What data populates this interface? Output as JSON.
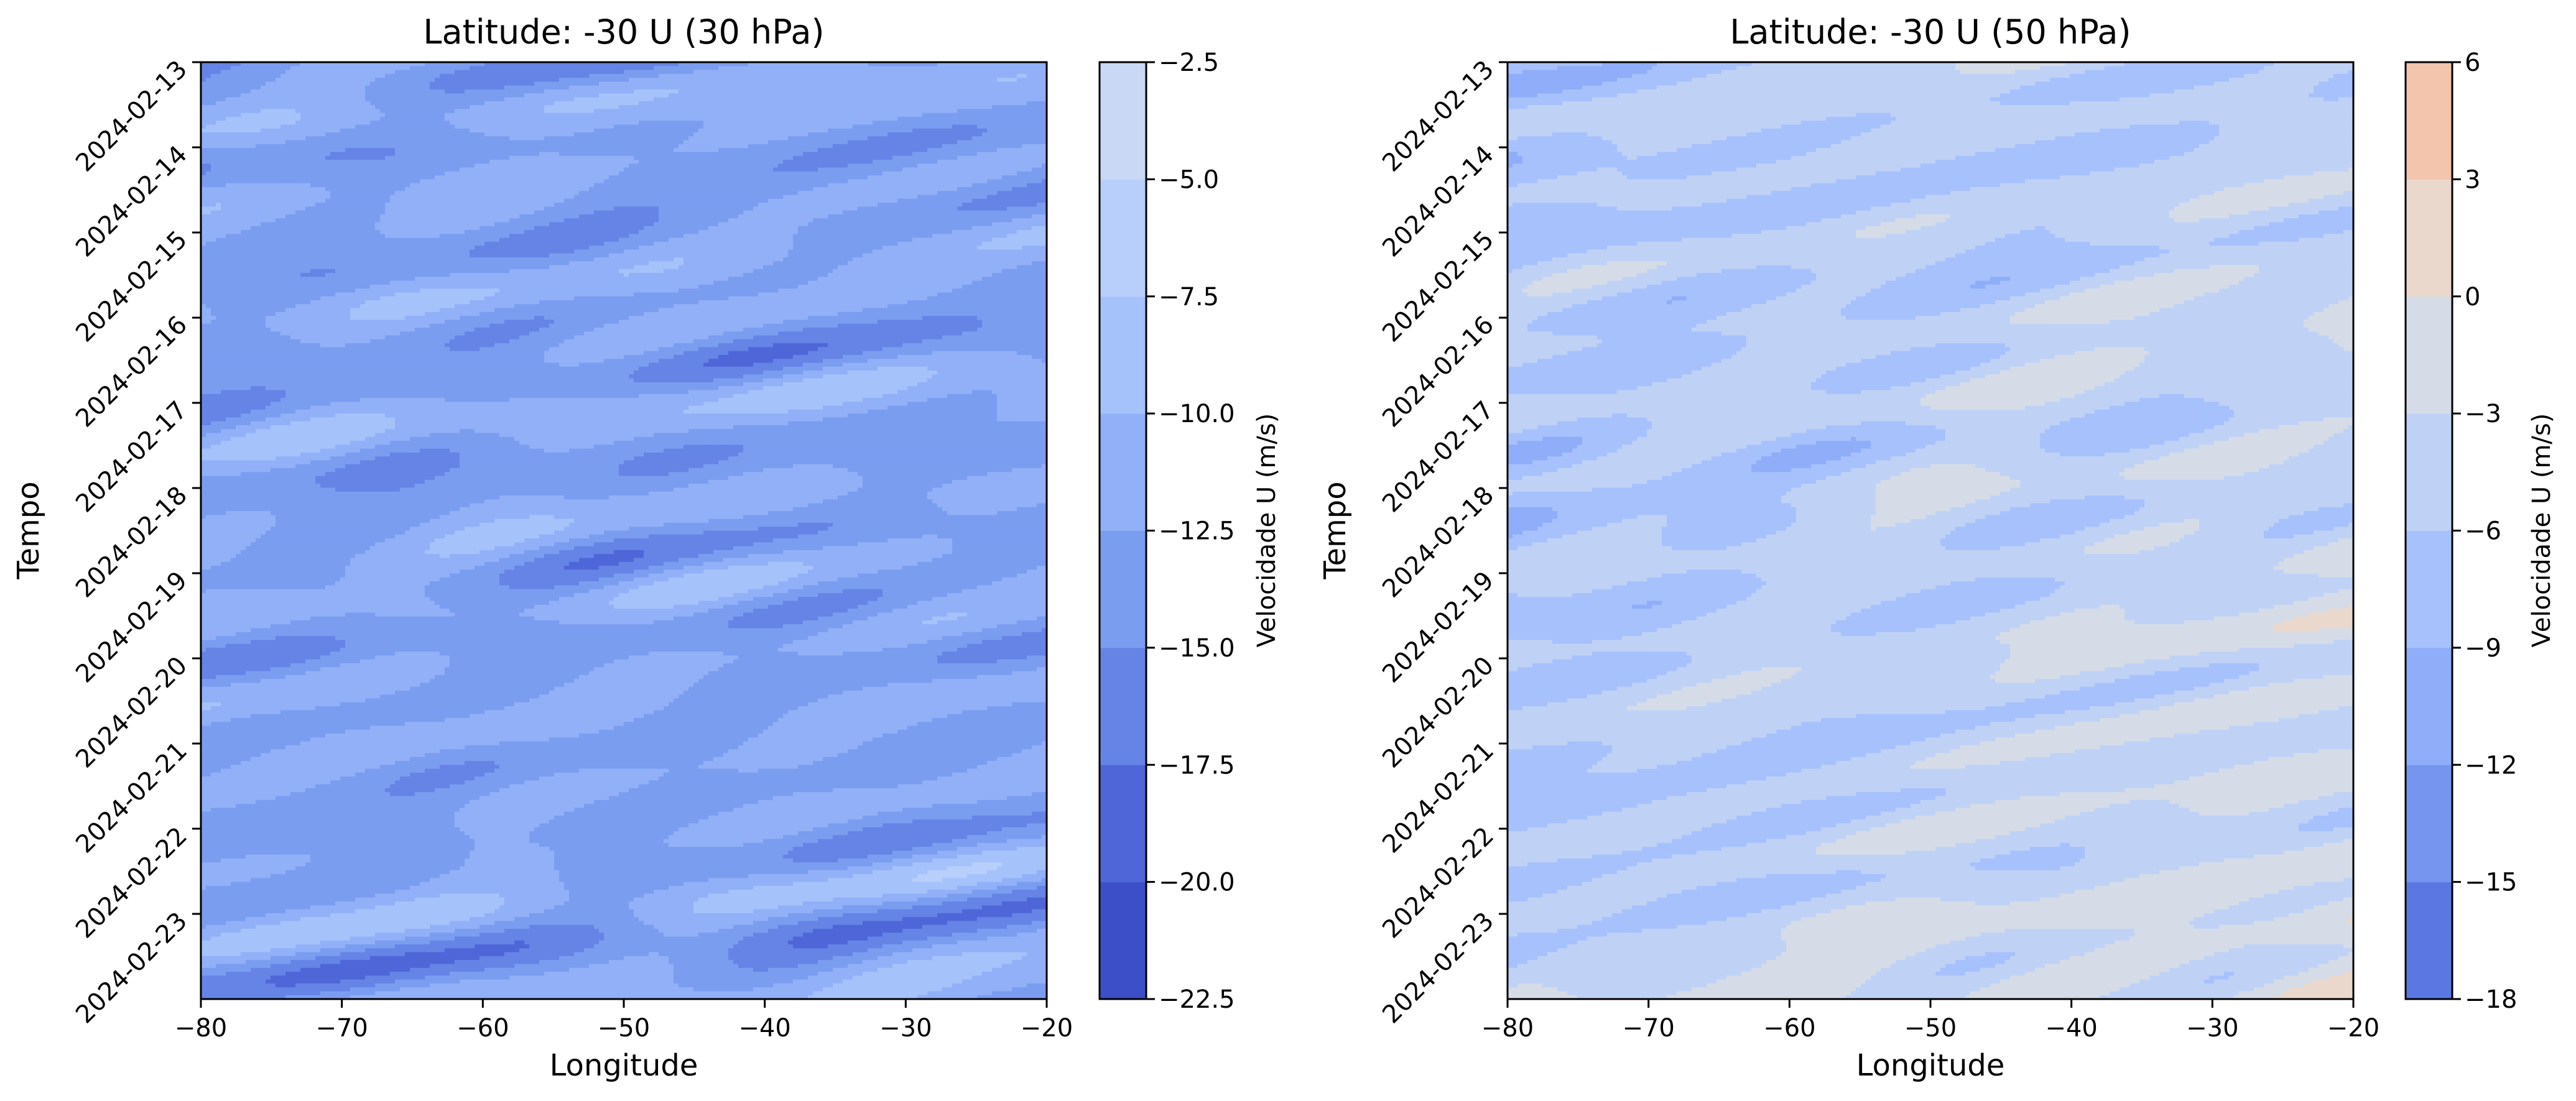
{
  "chart_data": [
    {
      "type": "heatmap",
      "title": "Latitude: -30 U (30 hPa)",
      "xlabel": "Longitude",
      "ylabel": "Tempo",
      "colorbar_label": "Velocidade U (m/s)",
      "x_ticks": [
        "−80",
        "−70",
        "−60",
        "−50",
        "−40",
        "−30",
        "−20"
      ],
      "x_tick_values": [
        -80,
        -70,
        -60,
        -50,
        -40,
        -30,
        -20
      ],
      "xlim": [
        -80,
        -20
      ],
      "y_ticks": [
        "2024-02-13",
        "2024-02-14",
        "2024-02-15",
        "2024-02-16",
        "2024-02-17",
        "2024-02-18",
        "2024-02-19",
        "2024-02-20",
        "2024-02-21",
        "2024-02-22",
        "2024-02-23"
      ],
      "ylim": [
        "2024-02-13",
        "2024-02-24"
      ],
      "y_inverted": true,
      "levels": [
        -22.5,
        -20.0,
        -17.5,
        -15.0,
        -12.5,
        -10.0,
        -7.5,
        -5.0,
        -2.5
      ],
      "level_labels": [
        "−22.5",
        "−20.0",
        "−17.5",
        "−15.0",
        "−12.5",
        "−10.0",
        "−7.5",
        "−5.0",
        "−2.5"
      ],
      "level_colors": [
        "#3d4fc8",
        "#4f66d8",
        "#6584e6",
        "#7b9df0",
        "#91b0f7",
        "#a6c2fb",
        "#b8cffc",
        "#c9d9f5"
      ],
      "field_mean": -12.8,
      "field_amplitude": 4.2
    },
    {
      "type": "heatmap",
      "title": "Latitude: -30 U (50 hPa)",
      "xlabel": "Longitude",
      "ylabel": "Tempo",
      "colorbar_label": "Velocidade U (m/s)",
      "x_ticks": [
        "−80",
        "−70",
        "−60",
        "−50",
        "−40",
        "−30",
        "−20"
      ],
      "x_tick_values": [
        -80,
        -70,
        -60,
        -50,
        -40,
        -30,
        -20
      ],
      "xlim": [
        -80,
        -20
      ],
      "y_ticks": [
        "2024-02-13",
        "2024-02-14",
        "2024-02-15",
        "2024-02-16",
        "2024-02-17",
        "2024-02-18",
        "2024-02-19",
        "2024-02-20",
        "2024-02-21",
        "2024-02-22",
        "2024-02-23"
      ],
      "ylim": [
        "2024-02-13",
        "2024-02-24"
      ],
      "y_inverted": true,
      "levels": [
        -18,
        -15,
        -12,
        -9,
        -6,
        -3,
        0,
        3,
        6
      ],
      "level_labels": [
        "−18",
        "−15",
        "−12",
        "−9",
        "−6",
        "−3",
        "0",
        "3",
        "6"
      ],
      "level_colors": [
        "#5b78e2",
        "#7595ee",
        "#8fadf8",
        "#a7c1fc",
        "#bfd2f6",
        "#d5dce8",
        "#ead8cd",
        "#f4c5ad"
      ],
      "field_mean": -6.5,
      "field_amplitude": 4.5
    }
  ]
}
